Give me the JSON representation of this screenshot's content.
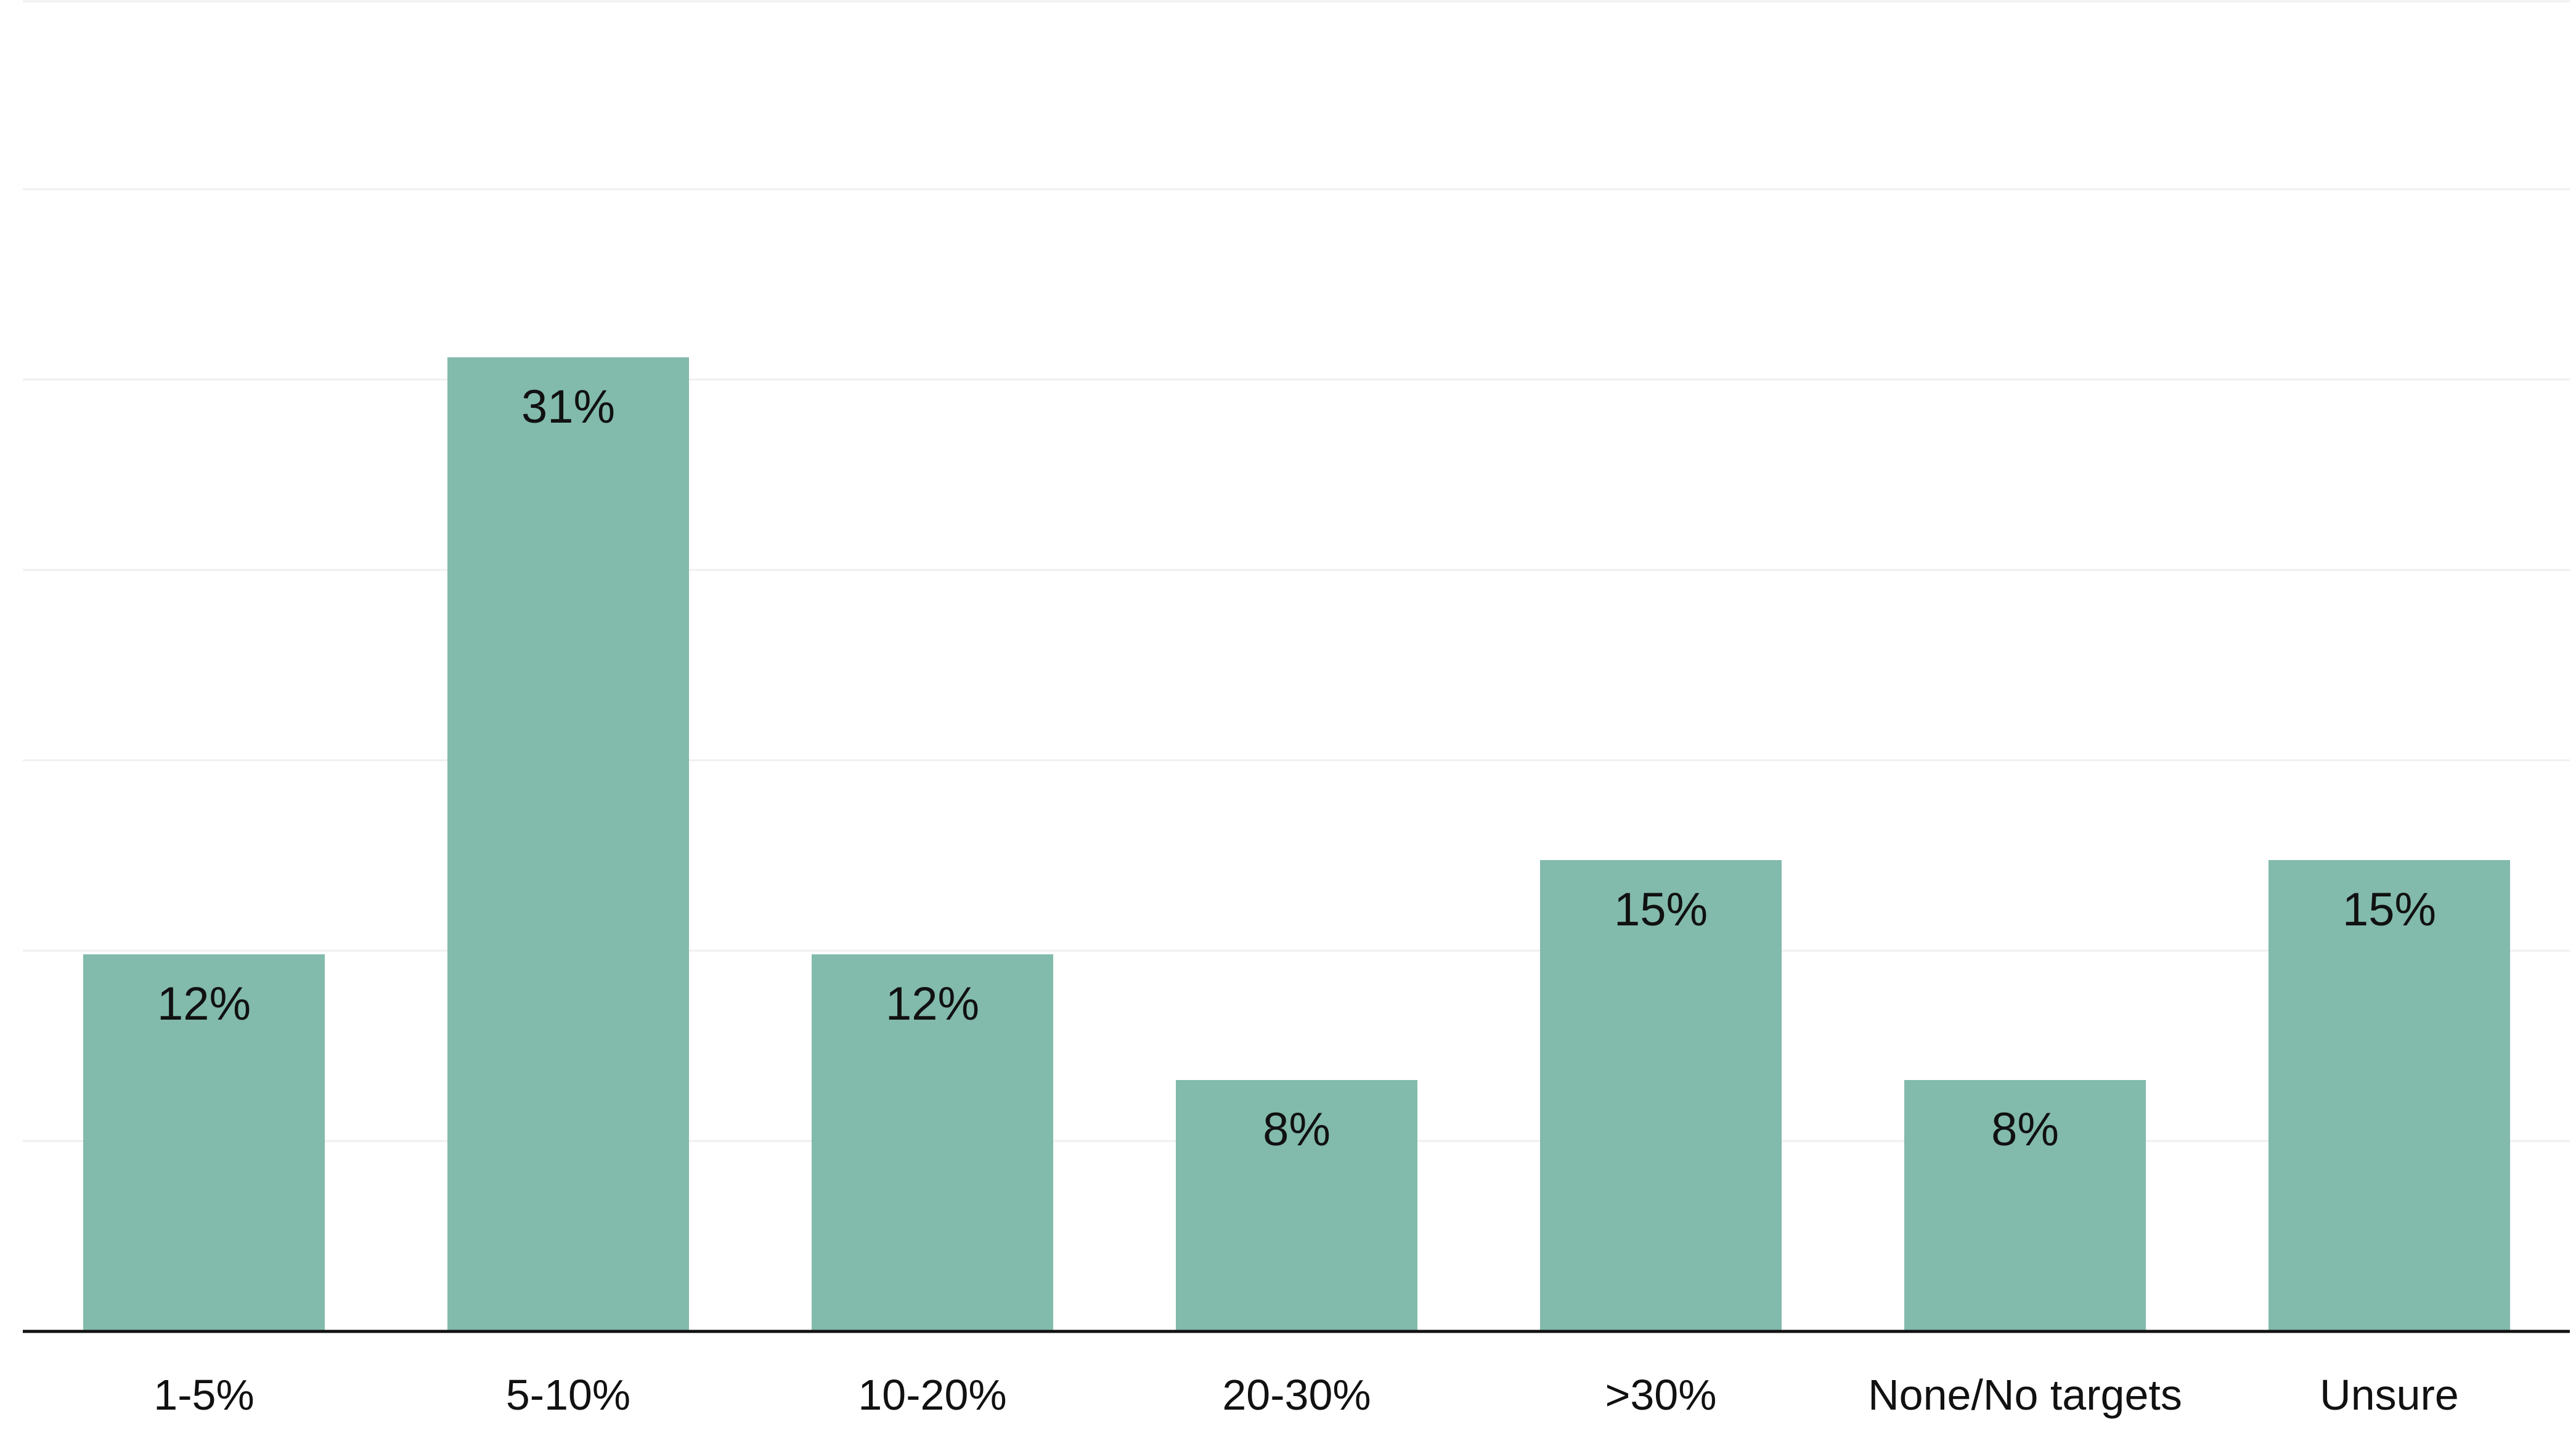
{
  "chart_data": {
    "type": "bar",
    "categories": [
      "1-5%",
      "5-10%",
      "10-20%",
      "20-30%",
      ">30%",
      "None/No targets",
      "Unsure"
    ],
    "values": [
      12,
      31,
      12,
      8,
      15,
      8,
      15
    ],
    "value_labels": [
      "12%",
      "31%",
      "12%",
      "8%",
      "15%",
      "8%",
      "15%"
    ],
    "title": "",
    "xlabel": "",
    "ylabel": "",
    "ylim": [
      0,
      35
    ],
    "grid": true,
    "legend": "none",
    "colors": {
      "bar": "#82BAAC",
      "gridline": "#EFEFEF",
      "axis": "#111111",
      "text": "#111111"
    }
  }
}
